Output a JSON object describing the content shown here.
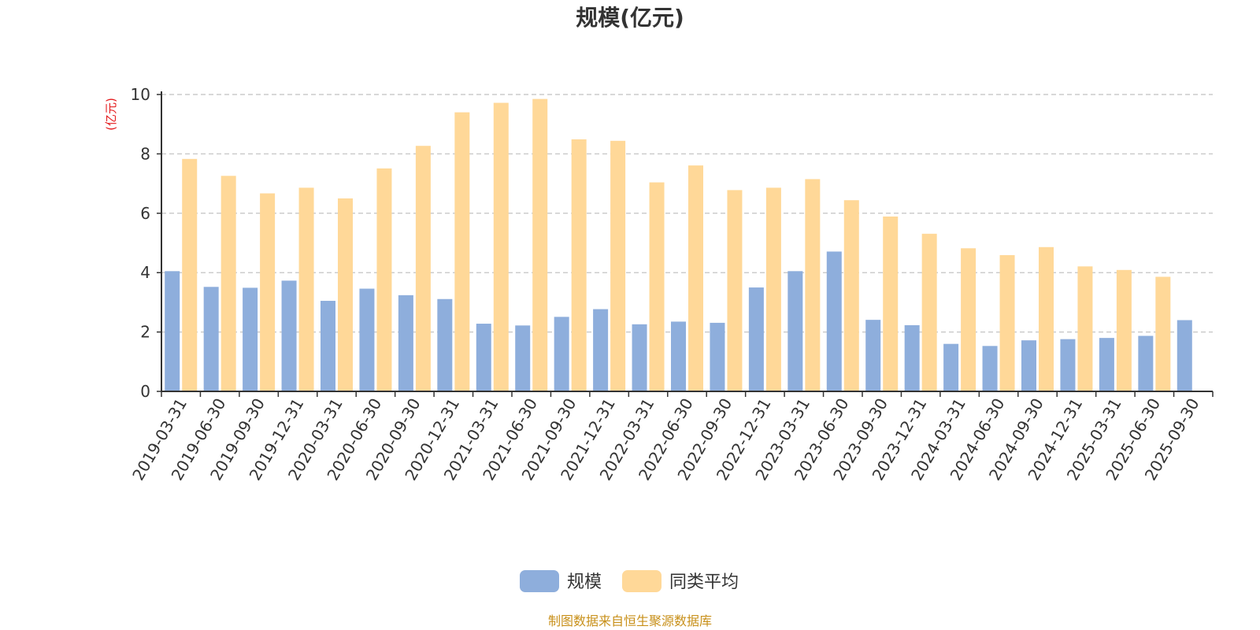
{
  "chart_data": {
    "type": "bar",
    "title": "规模(亿元)",
    "ylabel": "(亿元)",
    "ylim": [
      0,
      10
    ],
    "yticks": [
      0,
      2,
      4,
      6,
      8,
      10
    ],
    "grid": true,
    "legend_position": "bottom-center",
    "categories": [
      "2019-03-31",
      "2019-06-30",
      "2019-09-30",
      "2019-12-31",
      "2020-03-31",
      "2020-06-30",
      "2020-09-30",
      "2020-12-31",
      "2021-03-31",
      "2021-06-30",
      "2021-09-30",
      "2021-12-31",
      "2022-03-31",
      "2022-06-30",
      "2022-09-30",
      "2022-12-31",
      "2023-03-31",
      "2023-06-30",
      "2023-09-30",
      "2023-12-31",
      "2024-03-31",
      "2024-06-30",
      "2024-09-30",
      "2024-12-31",
      "2025-03-31",
      "2025-06-30",
      "2025-09-30"
    ],
    "series": [
      {
        "name": "规模",
        "color": "#8eaedc",
        "values": [
          4.05,
          3.52,
          3.49,
          3.73,
          3.05,
          3.46,
          3.24,
          3.11,
          2.28,
          2.22,
          2.51,
          2.77,
          2.26,
          2.35,
          2.31,
          3.5,
          4.05,
          4.71,
          2.41,
          2.23,
          1.6,
          1.53,
          1.72,
          1.76,
          1.8,
          1.87,
          2.4
        ]
      },
      {
        "name": "同类平均",
        "color": "#ffd898",
        "values": [
          7.83,
          7.26,
          6.67,
          6.86,
          6.5,
          7.51,
          8.27,
          9.4,
          9.72,
          9.85,
          8.49,
          8.44,
          7.04,
          7.61,
          6.78,
          6.86,
          7.15,
          6.44,
          5.89,
          5.31,
          4.82,
          4.59,
          4.86,
          4.21,
          4.09,
          3.86,
          null
        ]
      }
    ],
    "source": "制图数据来自恒生聚源数据库"
  }
}
